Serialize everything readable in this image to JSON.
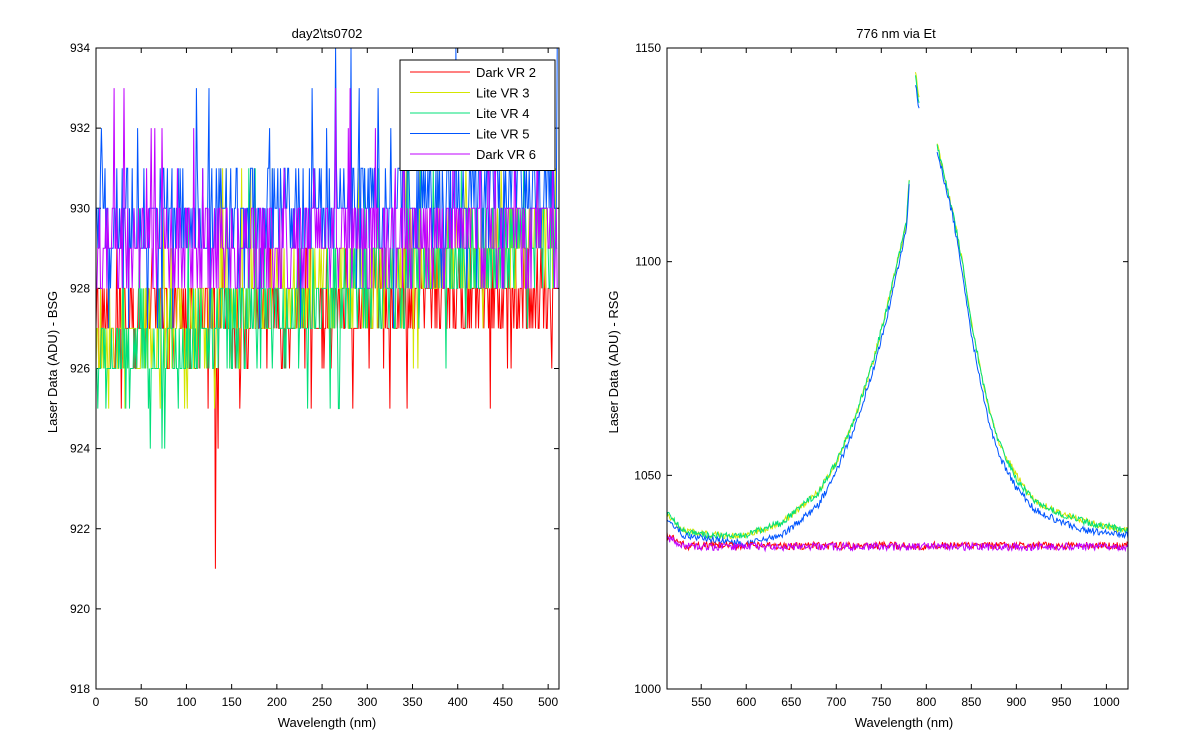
{
  "chart_data": [
    {
      "type": "line",
      "title": "day2\\ts0702",
      "xlabel": "Wavelength (nm)",
      "ylabel": "Laser Data (ADU) - BSG",
      "xlim": [
        0,
        512
      ],
      "ylim": [
        918,
        934
      ],
      "xticks": [
        0,
        50,
        100,
        150,
        200,
        250,
        300,
        350,
        400,
        450,
        500
      ],
      "yticks": [
        918,
        920,
        922,
        924,
        926,
        928,
        930,
        932,
        934
      ],
      "xtick_labels": [
        "0",
        "50",
        "100",
        "150",
        "200",
        "250",
        "300",
        "350",
        "400",
        "450",
        "500"
      ],
      "ytick_labels": [
        "918",
        "920",
        "922",
        "924",
        "926",
        "928",
        "930",
        "932",
        "934"
      ],
      "legend": {
        "position": "top-right",
        "entries": [
          "Dark VR 2",
          "Lite VR 3",
          "Lite VR 4",
          "Lite VR 5",
          "Dark VR 6"
        ]
      },
      "series": [
        {
          "name": "Dark VR 2",
          "color": "#ff0000",
          "description": "integer-valued noisy trace",
          "x_range": [
            0,
            510
          ],
          "base_start": 927.0,
          "base_end": 928.0,
          "low_values": [
            925,
            924,
            923,
            922,
            921
          ],
          "high_values": [
            928,
            929
          ],
          "min_point": {
            "x": 132,
            "y": 921
          }
        },
        {
          "name": "Lite VR 3",
          "color": "#d4e600",
          "description": "integer-valued noisy trace",
          "x_range": [
            0,
            510
          ],
          "base_start": 926.5,
          "base_end": 929.5,
          "high_values": [
            931
          ],
          "low_values": [
            925
          ]
        },
        {
          "name": "Lite VR 4",
          "color": "#00e07a",
          "description": "integer-valued noisy trace",
          "x_range": [
            0,
            510
          ],
          "base_start": 926.0,
          "base_end": 929.5,
          "low_values": [
            924,
            923
          ],
          "high_values": [
            930,
            931
          ]
        },
        {
          "name": "Lite VR 5",
          "color": "#0055ff",
          "description": "integer-valued noisy trace",
          "x_range": [
            0,
            510
          ],
          "base_start": 929.5,
          "base_end": 930.5,
          "low_values": [
            925
          ],
          "high_values": [
            931,
            932,
            933,
            934
          ]
        },
        {
          "name": "Dark VR 6",
          "color": "#c000ff",
          "description": "integer-valued noisy trace",
          "x_range": [
            0,
            510
          ],
          "base_start": 929.0,
          "base_end": 929.5,
          "low_values": [
            928
          ],
          "high_values": [
            931,
            932,
            933
          ]
        }
      ]
    },
    {
      "type": "line",
      "title": "776 nm via Et",
      "xlabel": "Wavelength (nm)",
      "ylabel": "Laser Data (ADU) - RSG",
      "xlim": [
        512,
        1024
      ],
      "ylim": [
        1000,
        1150
      ],
      "xticks": [
        550,
        600,
        650,
        700,
        750,
        800,
        850,
        900,
        950,
        1000
      ],
      "yticks": [
        1000,
        1050,
        1100,
        1150
      ],
      "xtick_labels": [
        "550",
        "600",
        "650",
        "700",
        "750",
        "800",
        "850",
        "900",
        "950",
        "1000"
      ],
      "ytick_labels": [
        "1000",
        "1050",
        "1100",
        "1150"
      ],
      "series": [
        {
          "name": "Dark VR 2",
          "color": "#ff0000",
          "shape": "flat",
          "level": 1033.5,
          "start_level": 1036.0
        },
        {
          "name": "Lite VR 3",
          "color": "#d4e600",
          "shape": "peak",
          "baseline": 1036.5,
          "peak_center": 797,
          "gap_range": [
            781,
            810
          ],
          "points": [
            [
              512,
              1041
            ],
            [
              530,
              1037
            ],
            [
              560,
              1036
            ],
            [
              600,
              1036
            ],
            [
              640,
              1039
            ],
            [
              680,
              1046
            ],
            [
              700,
              1053
            ],
            [
              720,
              1063
            ],
            [
              740,
              1076
            ],
            [
              755,
              1088
            ],
            [
              770,
              1102
            ],
            [
              778,
              1109
            ],
            [
              788,
              1145
            ],
            [
              792,
              1138
            ],
            [
              812,
              1128
            ],
            [
              820,
              1120
            ],
            [
              830,
              1111
            ],
            [
              840,
              1100
            ],
            [
              850,
              1086
            ],
            [
              860,
              1075
            ],
            [
              870,
              1065
            ],
            [
              880,
              1058
            ],
            [
              900,
              1050
            ],
            [
              920,
              1044
            ],
            [
              950,
              1041
            ],
            [
              980,
              1039
            ],
            [
              1024,
              1037
            ]
          ]
        },
        {
          "name": "Lite VR 4",
          "color": "#00e07a",
          "shape": "peak",
          "baseline": 1036.0,
          "peak_center": 797,
          "gap_range": [
            781,
            810
          ],
          "points": [
            [
              512,
              1041
            ],
            [
              530,
              1037
            ],
            [
              560,
              1036
            ],
            [
              600,
              1036
            ],
            [
              640,
              1039
            ],
            [
              680,
              1046
            ],
            [
              700,
              1053
            ],
            [
              720,
              1063
            ],
            [
              740,
              1076
            ],
            [
              755,
              1088
            ],
            [
              770,
              1102
            ],
            [
              778,
              1109
            ],
            [
              788,
              1143
            ],
            [
              792,
              1137
            ],
            [
              812,
              1127
            ],
            [
              820,
              1120
            ],
            [
              830,
              1111
            ],
            [
              840,
              1100
            ],
            [
              850,
              1086
            ],
            [
              860,
              1075
            ],
            [
              870,
              1065
            ],
            [
              880,
              1058
            ],
            [
              900,
              1049
            ],
            [
              920,
              1044
            ],
            [
              950,
              1041
            ],
            [
              980,
              1039
            ],
            [
              1024,
              1037
            ]
          ]
        },
        {
          "name": "Lite VR 5",
          "color": "#0055ff",
          "shape": "peak",
          "baseline": 1035.0,
          "peak_center": 797,
          "gap_range": [
            781,
            810
          ],
          "points": [
            [
              512,
              1040
            ],
            [
              530,
              1036
            ],
            [
              560,
              1035
            ],
            [
              600,
              1034
            ],
            [
              640,
              1036
            ],
            [
              680,
              1043
            ],
            [
              700,
              1051
            ],
            [
              720,
              1061
            ],
            [
              740,
              1074
            ],
            [
              755,
              1086
            ],
            [
              770,
              1100
            ],
            [
              778,
              1108
            ],
            [
              788,
              1141
            ],
            [
              792,
              1136
            ],
            [
              812,
              1126
            ],
            [
              820,
              1119
            ],
            [
              830,
              1110
            ],
            [
              840,
              1098
            ],
            [
              850,
              1083
            ],
            [
              860,
              1072
            ],
            [
              870,
              1062
            ],
            [
              880,
              1055
            ],
            [
              900,
              1047
            ],
            [
              920,
              1042
            ],
            [
              950,
              1039
            ],
            [
              980,
              1037
            ],
            [
              1024,
              1036
            ]
          ]
        },
        {
          "name": "Dark VR 6",
          "color": "#c000ff",
          "shape": "flat",
          "level": 1033.3,
          "start_level": 1035.5
        }
      ]
    }
  ]
}
